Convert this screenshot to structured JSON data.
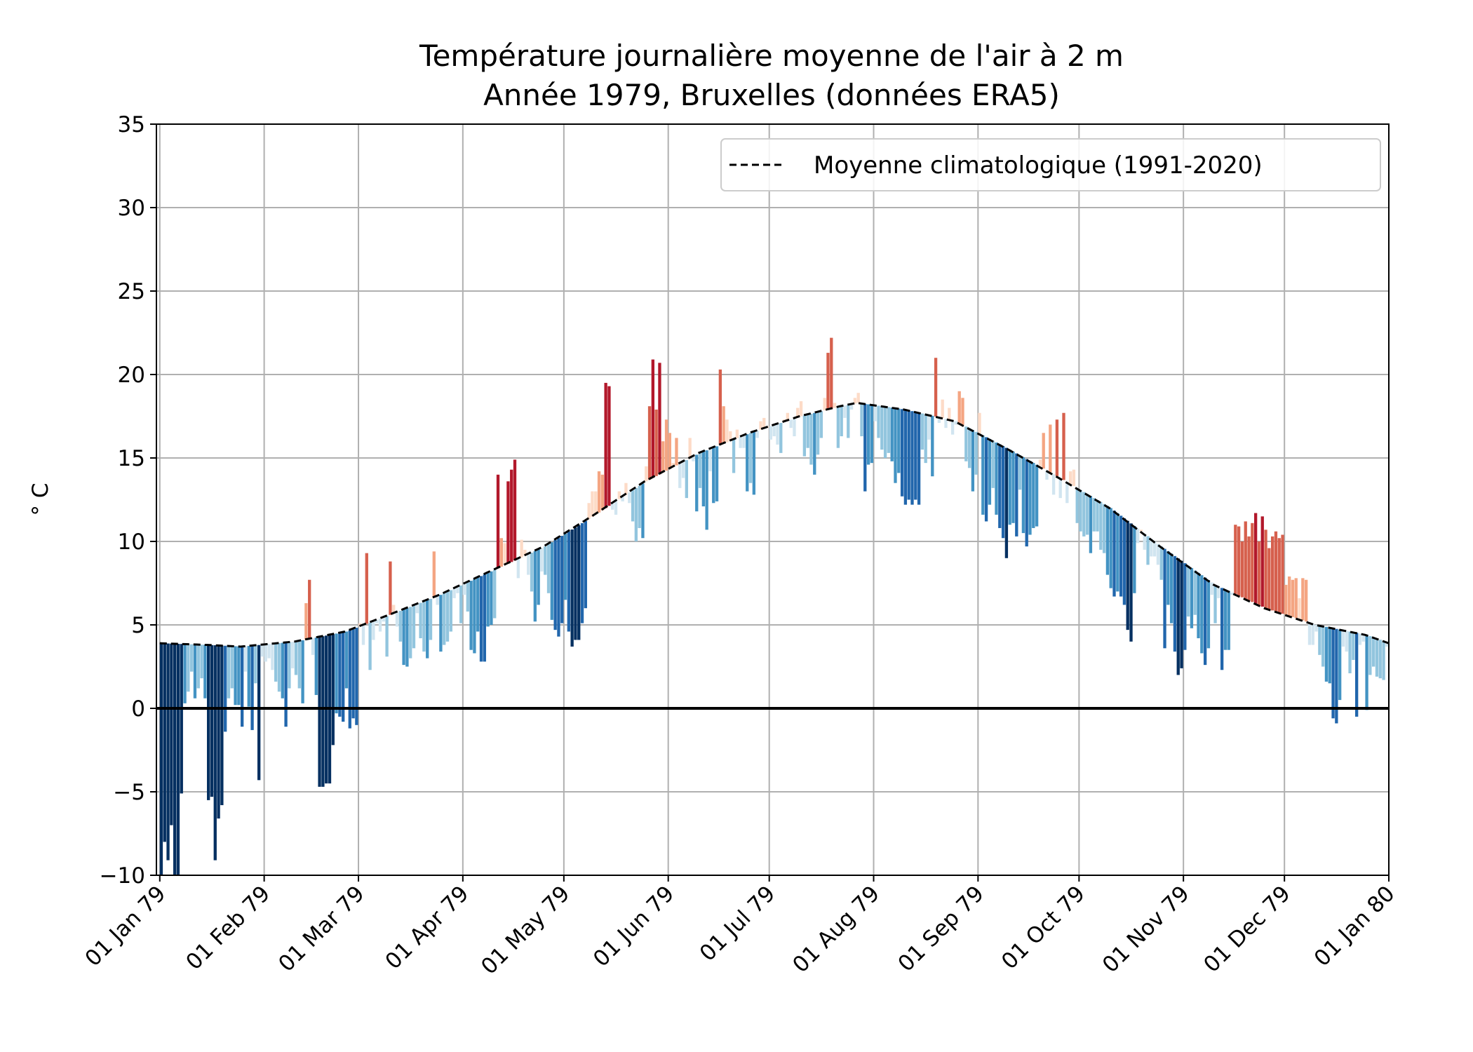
{
  "chart_data": {
    "type": "bar",
    "title": "Température journalière moyenne de l'air à 2 m",
    "subtitle": "Année 1979, Bruxelles (données ERA5)",
    "ylabel": "° C",
    "xlabel": "",
    "ylim": [
      -10,
      35
    ],
    "yticks": [
      -10,
      -5,
      0,
      5,
      10,
      15,
      20,
      25,
      30,
      35
    ],
    "ytick_labels": [
      "−10",
      "−5",
      "0",
      "5",
      "10",
      "15",
      "20",
      "25",
      "30",
      "35"
    ],
    "xticks": [
      "1979-01-01",
      "1979-02-01",
      "1979-03-01",
      "1979-04-01",
      "1979-05-01",
      "1979-06-01",
      "1979-07-01",
      "1979-08-01",
      "1979-09-01",
      "1979-10-01",
      "1979-11-01",
      "1979-12-01",
      "1980-01-01"
    ],
    "xtick_labels": [
      "01 Jan 79",
      "01 Feb 79",
      "01 Mar 79",
      "01 Apr 79",
      "01 May 79",
      "01 Jun 79",
      "01 Jul 79",
      "01 Aug 79",
      "01 Sep 79",
      "01 Oct 79",
      "01 Nov 79",
      "01 Dec 79",
      "01 Jan 80"
    ],
    "xlim": [
      "1978-12-31",
      "1980-01-01"
    ],
    "grid": true,
    "legend": {
      "position": "upper-right",
      "entries": [
        {
          "label": "Moyenne climatologique (1991-2020)",
          "style": "dashed",
          "color": "#000000"
        }
      ]
    },
    "colors": {
      "warm_scale": [
        "#fddbc7",
        "#f4a582",
        "#d6604d",
        "#b2182b"
      ],
      "cold_scale": [
        "#d1e5f0",
        "#92c5de",
        "#4393c3",
        "#2166ac",
        "#053061"
      ]
    },
    "climatology": {
      "name": "Moyenne climatologique (1991-2020)",
      "points": [
        [
          "1979-01-01",
          3.9
        ],
        [
          "1979-01-15",
          3.8
        ],
        [
          "1979-01-25",
          3.7
        ],
        [
          "1979-02-10",
          4.0
        ],
        [
          "1979-02-25",
          4.6
        ],
        [
          "1979-03-10",
          5.6
        ],
        [
          "1979-03-25",
          6.8
        ],
        [
          "1979-04-10",
          8.3
        ],
        [
          "1979-04-25",
          9.7
        ],
        [
          "1979-05-10",
          11.6
        ],
        [
          "1979-05-25",
          13.6
        ],
        [
          "1979-06-10",
          15.3
        ],
        [
          "1979-06-25",
          16.5
        ],
        [
          "1979-07-10",
          17.5
        ],
        [
          "1979-07-22",
          18.1
        ],
        [
          "1979-07-27",
          18.3
        ],
        [
          "1979-08-10",
          17.9
        ],
        [
          "1979-08-25",
          17.2
        ],
        [
          "1979-09-10",
          15.5
        ],
        [
          "1979-09-25",
          13.8
        ],
        [
          "1979-10-10",
          12.0
        ],
        [
          "1979-10-25",
          9.7
        ],
        [
          "1979-11-10",
          7.4
        ],
        [
          "1979-11-25",
          6.0
        ],
        [
          "1979-12-10",
          5.0
        ],
        [
          "1979-12-25",
          4.4
        ],
        [
          "1980-01-01",
          3.9
        ]
      ]
    },
    "series": [
      {
        "name": "",
        "x": [
          "1979-01-01",
          "1979-01-02",
          "1979-01-03",
          "1979-01-04",
          "1979-01-05",
          "1979-01-06",
          "1979-01-07",
          "1979-01-08",
          "1979-01-09",
          "1979-01-10",
          "1979-01-11",
          "1979-01-12",
          "1979-01-13",
          "1979-01-14",
          "1979-01-15",
          "1979-01-16",
          "1979-01-17",
          "1979-01-18",
          "1979-01-19",
          "1979-01-20",
          "1979-01-21",
          "1979-01-22",
          "1979-01-23",
          "1979-01-24",
          "1979-01-25",
          "1979-01-26",
          "1979-01-27",
          "1979-01-28",
          "1979-01-29",
          "1979-01-30",
          "1979-01-31",
          "1979-02-01",
          "1979-02-02",
          "1979-02-03",
          "1979-02-04",
          "1979-02-05",
          "1979-02-06",
          "1979-02-07",
          "1979-02-08",
          "1979-02-09",
          "1979-02-10",
          "1979-02-11",
          "1979-02-12",
          "1979-02-13",
          "1979-02-14",
          "1979-02-15",
          "1979-02-16",
          "1979-02-17",
          "1979-02-18",
          "1979-02-19",
          "1979-02-20",
          "1979-02-21",
          "1979-02-22",
          "1979-02-23",
          "1979-02-24",
          "1979-02-25",
          "1979-02-26",
          "1979-02-27",
          "1979-02-28",
          "1979-03-01",
          "1979-03-02",
          "1979-03-03",
          "1979-03-04",
          "1979-03-05",
          "1979-03-06",
          "1979-03-07",
          "1979-03-08",
          "1979-03-09",
          "1979-03-10",
          "1979-03-11",
          "1979-03-12",
          "1979-03-13",
          "1979-03-14",
          "1979-03-15",
          "1979-03-16",
          "1979-03-17",
          "1979-03-18",
          "1979-03-19",
          "1979-03-20",
          "1979-03-21",
          "1979-03-22",
          "1979-03-23",
          "1979-03-24",
          "1979-03-25",
          "1979-03-26",
          "1979-03-27",
          "1979-03-28",
          "1979-03-29",
          "1979-03-30",
          "1979-03-31",
          "1979-04-01",
          "1979-04-02",
          "1979-04-03",
          "1979-04-04",
          "1979-04-05",
          "1979-04-06",
          "1979-04-07",
          "1979-04-08",
          "1979-04-09",
          "1979-04-10",
          "1979-04-11",
          "1979-04-12",
          "1979-04-13",
          "1979-04-14",
          "1979-04-15",
          "1979-04-16",
          "1979-04-17",
          "1979-04-18",
          "1979-04-19",
          "1979-04-20",
          "1979-04-21",
          "1979-04-22",
          "1979-04-23",
          "1979-04-24",
          "1979-04-25",
          "1979-04-26",
          "1979-04-27",
          "1979-04-28",
          "1979-04-29",
          "1979-04-30",
          "1979-05-01",
          "1979-05-02",
          "1979-05-03",
          "1979-05-04",
          "1979-05-05",
          "1979-05-06",
          "1979-05-07",
          "1979-05-08",
          "1979-05-09",
          "1979-05-10",
          "1979-05-11",
          "1979-05-12",
          "1979-05-13",
          "1979-05-14",
          "1979-05-15",
          "1979-05-16",
          "1979-05-17",
          "1979-05-18",
          "1979-05-19",
          "1979-05-20",
          "1979-05-21",
          "1979-05-22",
          "1979-05-23",
          "1979-05-24",
          "1979-05-25",
          "1979-05-26",
          "1979-05-27",
          "1979-05-28",
          "1979-05-29",
          "1979-05-30",
          "1979-05-31",
          "1979-06-01",
          "1979-06-02",
          "1979-06-03",
          "1979-06-04",
          "1979-06-05",
          "1979-06-06",
          "1979-06-07",
          "1979-06-08",
          "1979-06-09",
          "1979-06-10",
          "1979-06-11",
          "1979-06-12",
          "1979-06-13",
          "1979-06-14",
          "1979-06-15",
          "1979-06-16",
          "1979-06-17",
          "1979-06-18",
          "1979-06-19",
          "1979-06-20",
          "1979-06-21",
          "1979-06-22",
          "1979-06-23",
          "1979-06-24",
          "1979-06-25",
          "1979-06-26",
          "1979-06-27",
          "1979-06-28",
          "1979-06-29",
          "1979-06-30",
          "1979-07-01",
          "1979-07-02",
          "1979-07-03",
          "1979-07-04",
          "1979-07-05",
          "1979-07-06",
          "1979-07-07",
          "1979-07-08",
          "1979-07-09",
          "1979-07-10",
          "1979-07-11",
          "1979-07-12",
          "1979-07-13",
          "1979-07-14",
          "1979-07-15",
          "1979-07-16",
          "1979-07-17",
          "1979-07-18",
          "1979-07-19",
          "1979-07-20",
          "1979-07-21",
          "1979-07-22",
          "1979-07-23",
          "1979-07-24",
          "1979-07-25",
          "1979-07-26",
          "1979-07-27",
          "1979-07-28",
          "1979-07-29",
          "1979-07-30",
          "1979-07-31",
          "1979-08-01",
          "1979-08-02",
          "1979-08-03",
          "1979-08-04",
          "1979-08-05",
          "1979-08-06",
          "1979-08-07",
          "1979-08-08",
          "1979-08-09",
          "1979-08-10",
          "1979-08-11",
          "1979-08-12",
          "1979-08-13",
          "1979-08-14",
          "1979-08-15",
          "1979-08-16",
          "1979-08-17",
          "1979-08-18",
          "1979-08-19",
          "1979-08-20",
          "1979-08-21",
          "1979-08-22",
          "1979-08-23",
          "1979-08-24",
          "1979-08-25",
          "1979-08-26",
          "1979-08-27",
          "1979-08-28",
          "1979-08-29",
          "1979-08-30",
          "1979-08-31",
          "1979-09-01",
          "1979-09-02",
          "1979-09-03",
          "1979-09-04",
          "1979-09-05",
          "1979-09-06",
          "1979-09-07",
          "1979-09-08",
          "1979-09-09",
          "1979-09-10",
          "1979-09-11",
          "1979-09-12",
          "1979-09-13",
          "1979-09-14",
          "1979-09-15",
          "1979-09-16",
          "1979-09-17",
          "1979-09-18",
          "1979-09-19",
          "1979-09-20",
          "1979-09-21",
          "1979-09-22",
          "1979-09-23",
          "1979-09-24",
          "1979-09-25",
          "1979-09-26",
          "1979-09-27",
          "1979-09-28",
          "1979-09-29",
          "1979-09-30",
          "1979-10-01",
          "1979-10-02",
          "1979-10-03",
          "1979-10-04",
          "1979-10-05",
          "1979-10-06",
          "1979-10-07",
          "1979-10-08",
          "1979-10-09",
          "1979-10-10",
          "1979-10-11",
          "1979-10-12",
          "1979-10-13",
          "1979-10-14",
          "1979-10-15",
          "1979-10-16",
          "1979-10-17",
          "1979-10-18",
          "1979-10-19",
          "1979-10-20",
          "1979-10-21",
          "1979-10-22",
          "1979-10-23",
          "1979-10-24",
          "1979-10-25",
          "1979-10-26",
          "1979-10-27",
          "1979-10-28",
          "1979-10-29",
          "1979-10-30",
          "1979-10-31",
          "1979-11-01",
          "1979-11-02",
          "1979-11-03",
          "1979-11-04",
          "1979-11-05",
          "1979-11-06",
          "1979-11-07",
          "1979-11-08",
          "1979-11-09",
          "1979-11-10",
          "1979-11-11",
          "1979-11-12",
          "1979-11-13",
          "1979-11-14",
          "1979-11-15",
          "1979-11-16",
          "1979-11-17",
          "1979-11-18",
          "1979-11-19",
          "1979-11-20",
          "1979-11-21",
          "1979-11-22",
          "1979-11-23",
          "1979-11-24",
          "1979-11-25",
          "1979-11-26",
          "1979-11-27",
          "1979-11-28",
          "1979-11-29",
          "1979-11-30",
          "1979-12-01",
          "1979-12-02",
          "1979-12-03",
          "1979-12-04",
          "1979-12-05",
          "1979-12-06",
          "1979-12-07",
          "1979-12-08",
          "1979-12-09",
          "1979-12-10",
          "1979-12-11",
          "1979-12-12",
          "1979-12-13",
          "1979-12-14",
          "1979-12-15",
          "1979-12-16",
          "1979-12-17",
          "1979-12-18",
          "1979-12-19",
          "1979-12-20",
          "1979-12-21",
          "1979-12-22",
          "1979-12-23",
          "1979-12-24",
          "1979-12-25",
          "1979-12-26",
          "1979-12-27",
          "1979-12-28",
          "1979-12-29",
          "1979-12-30",
          "1979-12-31"
        ],
        "values": [
          -10.0,
          -8.0,
          -9.1,
          -7.0,
          -10.0,
          -10.0,
          -5.1,
          0.3,
          1.0,
          2.2,
          0.6,
          1.2,
          1.8,
          0.6,
          -5.5,
          -5.3,
          -9.1,
          -6.6,
          -5.8,
          -1.4,
          0.6,
          1.2,
          0.2,
          0.2,
          -1.1,
          2.2,
          0.1,
          -1.3,
          1.5,
          -4.3,
          3.1,
          2.8,
          3.0,
          2.3,
          1.6,
          1.0,
          0.6,
          -1.1,
          1.2,
          2.4,
          2.0,
          1.2,
          0.3,
          6.3,
          7.7,
          3.2,
          0.8,
          -4.7,
          -4.7,
          -4.5,
          -4.5,
          -2.2,
          -0.3,
          -0.5,
          -0.8,
          1.2,
          -1.2,
          -0.6,
          -1.0,
          5.1,
          3.8,
          9.3,
          2.3,
          4.1,
          5.1,
          4.6,
          5.2,
          3.1,
          8.8,
          6.2,
          4.9,
          4.0,
          2.6,
          2.5,
          3.0,
          3.6,
          5.7,
          4.2,
          3.4,
          3.0,
          4.1,
          9.4,
          6.2,
          3.4,
          3.8,
          4.0,
          4.6,
          6.6,
          6.9,
          5.1,
          6.8,
          5.8,
          3.5,
          3.3,
          4.6,
          2.8,
          2.8,
          4.9,
          5.0,
          5.4,
          14.0,
          10.2,
          9.9,
          13.6,
          14.3,
          14.9,
          7.8,
          10.1,
          9.5,
          8.0,
          7.0,
          5.2,
          6.2,
          8.2,
          8.0,
          6.9,
          5.3,
          4.7,
          4.3,
          5.1,
          6.5,
          4.6,
          3.7,
          4.1,
          4.1,
          5.1,
          6.0,
          12.3,
          13.0,
          13.0,
          14.2,
          14.0,
          19.5,
          19.3,
          11.9,
          11.6,
          13.0,
          12.4,
          13.5,
          12.3,
          11.2,
          10.0,
          10.8,
          10.2,
          14.5,
          18.1,
          20.9,
          17.9,
          20.7,
          16.0,
          17.3,
          16.5,
          14.7,
          16.2,
          13.2,
          13.8,
          12.6,
          16.2,
          14.8,
          11.8,
          13.2,
          12.1,
          10.7,
          14.2,
          12.3,
          12.4,
          20.3,
          18.1,
          17.3,
          16.6,
          14.1,
          16.7,
          15.6,
          15.6,
          13.0,
          13.5,
          12.8,
          16.2,
          17.2,
          17.4,
          16.9,
          16.1,
          16.3,
          15.8,
          15.3,
          17.3,
          17.7,
          16.8,
          16.3,
          18.0,
          18.4,
          15.1,
          15.6,
          14.6,
          14.0,
          15.2,
          16.2,
          18.6,
          21.3,
          22.2,
          18.3,
          15.6,
          16.3,
          17.4,
          16.2,
          17.9,
          18.6,
          18.9,
          16.3,
          13.0,
          14.6,
          14.7,
          17.2,
          16.2,
          15.5,
          15.0,
          15.3,
          14.8,
          13.5,
          14.1,
          12.7,
          12.2,
          12.5,
          12.2,
          12.5,
          12.2,
          15.5,
          14.7,
          16.1,
          13.9,
          21.0,
          17.1,
          18.5,
          16.8,
          18.0,
          16.4,
          17.0,
          19.0,
          18.6,
          14.8,
          14.4,
          13.0,
          14.0,
          17.7,
          11.6,
          11.2,
          12.2,
          13.2,
          11.6,
          10.8,
          10.2,
          9.0,
          11.0,
          11.1,
          10.3,
          13.1,
          10.5,
          9.7,
          10.4,
          10.8,
          10.9,
          14.9,
          16.5,
          13.7,
          17.0,
          12.8,
          17.3,
          12.6,
          17.7,
          12.3,
          14.2,
          14.3,
          11.1,
          10.6,
          10.3,
          10.4,
          9.3,
          10.6,
          10.6,
          9.5,
          9.3,
          8.0,
          7.2,
          6.7,
          7.0,
          6.7,
          6.2,
          4.7,
          4.0,
          6.9,
          9.9,
          10.7,
          9.5,
          8.6,
          9.1,
          9.1,
          8.6,
          7.7,
          3.6,
          6.2,
          5.1,
          3.4,
          2.0,
          2.4,
          3.5,
          5.5,
          4.8,
          5.6,
          4.2,
          3.3,
          2.6,
          3.6,
          6.8,
          5.1,
          6.6,
          2.3,
          3.5,
          3.5,
          6.8,
          11.0,
          10.9,
          10.0,
          11.2,
          10.3,
          11.1,
          11.7,
          10.0,
          11.5,
          10.7,
          9.6,
          10.3,
          10.6,
          10.2,
          10.4,
          7.4,
          7.9,
          7.7,
          7.8,
          6.6,
          7.8,
          7.7,
          3.8,
          3.8,
          4.6,
          3.2,
          2.5,
          1.6,
          1.5,
          -0.6,
          -0.9,
          0.5,
          3.7,
          3.4,
          2.1,
          2.9,
          -0.5,
          3.8,
          4.0,
          -0.1,
          2.0,
          2.5,
          1.9,
          1.8,
          1.7,
          3.7
        ]
      }
    ]
  }
}
